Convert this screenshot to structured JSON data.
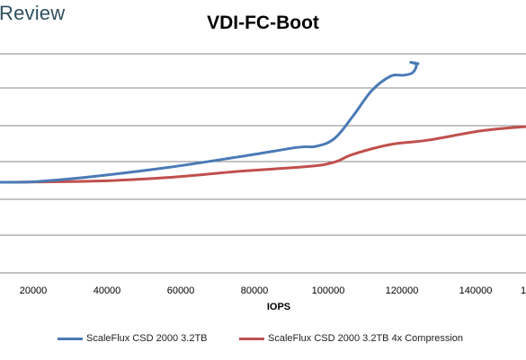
{
  "brand": {
    "text": "Review"
  },
  "colors": {
    "series1": "#4a7ab5",
    "series2": "#c0504d",
    "grid": "#878787"
  },
  "chart_data": {
    "type": "line",
    "title": "VDI-FC-Boot",
    "xlabel": "IOPS",
    "ylabel": "",
    "x_ticks": [
      "20000",
      "40000",
      "60000",
      "80000",
      "100000",
      "120000",
      "140000",
      "1"
    ],
    "xlim": [
      15000,
      156500
    ],
    "grid": true,
    "legend_position": "bottom",
    "series": [
      {
        "name": "ScaleFlux CSD 2000 3.2TB",
        "points": [
          [
            15000,
            0
          ],
          [
            25000,
            0.02
          ],
          [
            40000,
            0.16
          ],
          [
            60000,
            0.41
          ],
          [
            80000,
            0.72
          ],
          [
            95000,
            0.97
          ],
          [
            100000,
            1.0
          ],
          [
            105000,
            1.22
          ],
          [
            110000,
            1.85
          ],
          [
            115000,
            2.55
          ],
          [
            120000,
            2.95
          ],
          [
            123500,
            2.98
          ],
          [
            126000,
            3.05
          ],
          [
            127000,
            3.27
          ],
          [
            125500,
            3.34
          ],
          [
            127500,
            3.3
          ]
        ]
      },
      {
        "name": "ScaleFlux CSD 2000 3.2TB 4x Compression",
        "points": [
          [
            15000,
            0
          ],
          [
            40000,
            0.03
          ],
          [
            60000,
            0.13
          ],
          [
            80000,
            0.31
          ],
          [
            98000,
            0.44
          ],
          [
            105000,
            0.56
          ],
          [
            110000,
            0.78
          ],
          [
            120000,
            1.05
          ],
          [
            130000,
            1.17
          ],
          [
            145000,
            1.44
          ],
          [
            156500,
            1.55
          ]
        ]
      }
    ]
  }
}
